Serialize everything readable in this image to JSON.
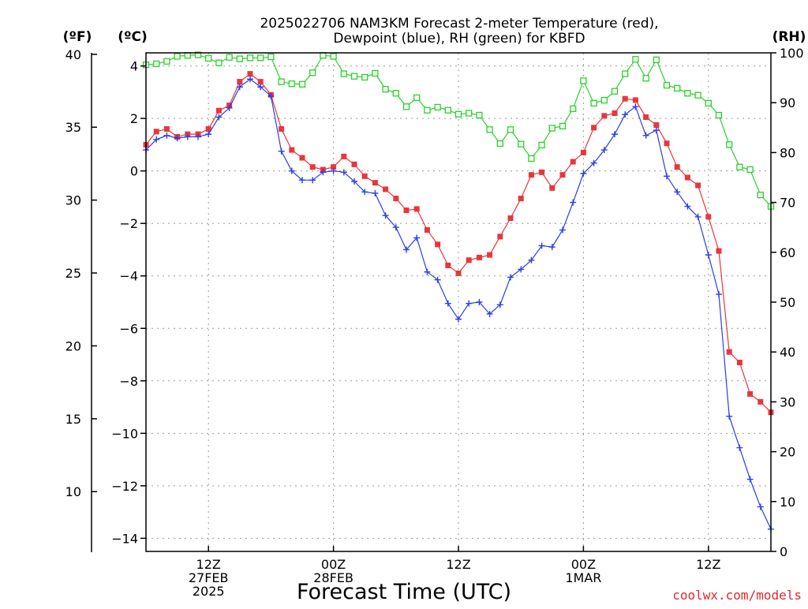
{
  "chart_data": {
    "type": "line",
    "title_lines": [
      "2025022706 NAM3KM Forecast 2-meter Temperature (red),",
      "Dewpoint (blue), RH (green) for KBFD"
    ],
    "xlabel": "Forecast Time (UTC)",
    "credit": "coolwx.com/models",
    "unit_labels": {
      "fahrenheit": "(ºF)",
      "celsius": "(ºC)",
      "rh": "(RH)"
    },
    "x_unit": "forecast hour (time step index, hourly from 2025-02-27 06Z)",
    "xlim": [
      0,
      60
    ],
    "ylim_celsius": [
      -14.5,
      4.5
    ],
    "ylim_rh": [
      0,
      100
    ],
    "grid": true,
    "x_ticks": [
      {
        "x": 6,
        "labels": [
          "12Z",
          "27FEB",
          "2025"
        ]
      },
      {
        "x": 18,
        "labels": [
          "00Z",
          "28FEB"
        ]
      },
      {
        "x": 30,
        "labels": [
          "12Z"
        ]
      },
      {
        "x": 42,
        "labels": [
          "00Z",
          "1MAR"
        ]
      },
      {
        "x": 54,
        "labels": [
          "12Z"
        ]
      }
    ],
    "celsius_ticks": [
      {
        "value": 4,
        "label": "4"
      },
      {
        "value": 2,
        "label": "2"
      },
      {
        "value": 0,
        "label": "0"
      },
      {
        "value": -2,
        "label": "−2"
      },
      {
        "value": -4,
        "label": "−4"
      },
      {
        "value": -6,
        "label": "−6"
      },
      {
        "value": -8,
        "label": "−8"
      },
      {
        "value": -10,
        "label": "−10"
      },
      {
        "value": -12,
        "label": "−12"
      },
      {
        "value": -14,
        "label": "−14"
      }
    ],
    "fahrenheit_ticks": [
      {
        "value": 40,
        "label": "40"
      },
      {
        "value": 35,
        "label": "35"
      },
      {
        "value": 30,
        "label": "30"
      },
      {
        "value": 25,
        "label": "25"
      },
      {
        "value": 20,
        "label": "20"
      },
      {
        "value": 15,
        "label": "15"
      },
      {
        "value": 10,
        "label": "10"
      }
    ],
    "rh_ticks": [
      {
        "value": 100,
        "label": "100"
      },
      {
        "value": 90,
        "label": "90"
      },
      {
        "value": 80,
        "label": "80"
      },
      {
        "value": 70,
        "label": "70"
      },
      {
        "value": 60,
        "label": "60"
      },
      {
        "value": 50,
        "label": "50"
      },
      {
        "value": 40,
        "label": "40"
      },
      {
        "value": 30,
        "label": "30"
      },
      {
        "value": 20,
        "label": "20"
      },
      {
        "value": 10,
        "label": "10"
      },
      {
        "value": 0,
        "label": "0"
      }
    ],
    "series": [
      {
        "key": "temperature",
        "axis": "celsius",
        "color": "#e8363c",
        "marker": "filled-square",
        "values": [
          1.0,
          1.5,
          1.6,
          1.3,
          1.4,
          1.4,
          1.6,
          2.3,
          2.5,
          3.4,
          3.7,
          3.4,
          2.9,
          1.6,
          0.8,
          0.5,
          0.15,
          0.05,
          0.15,
          0.55,
          0.25,
          -0.2,
          -0.45,
          -0.7,
          -1.05,
          -1.5,
          -1.45,
          -2.25,
          -2.8,
          -3.6,
          -3.9,
          -3.4,
          -3.3,
          -3.2,
          -2.5,
          -1.8,
          -1.05,
          -0.15,
          -0.05,
          -0.65,
          -0.15,
          0.35,
          0.7,
          1.65,
          2.1,
          2.2,
          2.75,
          2.7,
          2.05,
          1.75,
          1.05,
          0.15,
          -0.25,
          -0.55,
          -1.75,
          -3.05,
          -6.9,
          -7.3,
          -8.5,
          -8.8,
          -9.2
        ]
      },
      {
        "key": "dewpoint",
        "axis": "celsius",
        "color": "#2b3ee8",
        "marker": "plus",
        "values": [
          0.8,
          1.2,
          1.35,
          1.25,
          1.3,
          1.3,
          1.4,
          2.05,
          2.4,
          3.2,
          3.5,
          3.2,
          2.85,
          0.75,
          0.0,
          -0.35,
          -0.35,
          -0.05,
          0.0,
          -0.05,
          -0.4,
          -0.8,
          -0.85,
          -1.7,
          -2.15,
          -3.0,
          -2.55,
          -3.85,
          -4.15,
          -5.05,
          -5.65,
          -5.05,
          -5.0,
          -5.45,
          -5.1,
          -4.05,
          -3.75,
          -3.4,
          -2.85,
          -2.9,
          -2.25,
          -1.2,
          -0.1,
          0.3,
          0.8,
          1.4,
          2.15,
          2.45,
          1.35,
          1.55,
          -0.2,
          -0.8,
          -1.35,
          -1.75,
          -3.2,
          -4.7,
          -9.35,
          -10.55,
          -11.75,
          -12.8,
          -13.65
        ]
      },
      {
        "key": "rh",
        "axis": "rh",
        "color": "#2ad12a",
        "marker": "open-square",
        "values": [
          97.6,
          97.8,
          98.3,
          99.3,
          99.5,
          99.6,
          98.9,
          98.0,
          99.1,
          98.8,
          99.0,
          99.0,
          99.2,
          94.2,
          93.8,
          93.7,
          96.0,
          99.5,
          99.3,
          95.8,
          95.3,
          95.1,
          95.9,
          92.7,
          91.9,
          89.2,
          91.0,
          88.5,
          89.1,
          88.5,
          87.7,
          87.9,
          87.5,
          84.6,
          81.8,
          84.6,
          81.7,
          78.8,
          81.5,
          84.9,
          85.3,
          88.8,
          94.4,
          89.9,
          90.5,
          92.3,
          95.8,
          98.7,
          94.9,
          98.6,
          93.5,
          92.9,
          91.9,
          91.5,
          89.9,
          87.5,
          81.6,
          77.1,
          76.6,
          71.5,
          69.2
        ]
      }
    ]
  }
}
